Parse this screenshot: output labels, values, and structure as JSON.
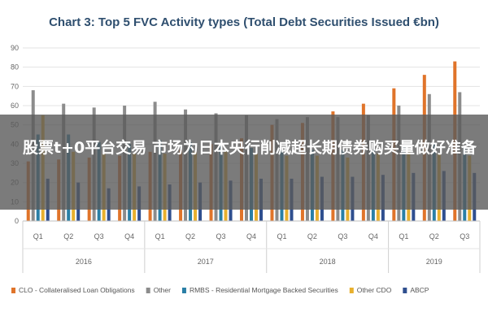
{
  "chart_data": {
    "type": "bar",
    "title": "Chart 3: Top 5 FVC Activity types (Total Debt Securities Issued €bn)",
    "xlabel": "",
    "ylabel": "",
    "ylim": [
      0,
      90
    ],
    "yticks": [
      0,
      10,
      20,
      30,
      40,
      50,
      60,
      70,
      80,
      90
    ],
    "grid": true,
    "legend_position": "bottom",
    "categories": [
      "Q1",
      "Q2",
      "Q3",
      "Q4",
      "Q1",
      "Q2",
      "Q3",
      "Q4",
      "Q1",
      "Q2",
      "Q3",
      "Q4",
      "Q1",
      "Q2",
      "Q3"
    ],
    "groups": [
      {
        "label": "2016",
        "count": 4
      },
      {
        "label": "2017",
        "count": 4
      },
      {
        "label": "2018",
        "count": 4
      },
      {
        "label": "2019",
        "count": 3
      }
    ],
    "series": [
      {
        "name": "CLO - Collateralised Loan Obligations",
        "color": "#e0742a",
        "values": [
          31,
          32,
          33,
          34,
          36,
          37,
          40,
          43,
          50,
          51,
          57,
          61,
          69,
          76,
          83
        ]
      },
      {
        "name": "Other",
        "color": "#8c8c8c",
        "values": [
          68,
          61,
          59,
          60,
          62,
          58,
          56,
          55,
          53,
          54,
          54,
          55,
          60,
          66,
          67
        ]
      },
      {
        "name": "RMBS - Residential Mortgage Backed Securities",
        "color": "#2a7fa6",
        "values": [
          45,
          45,
          41,
          40,
          42,
          41,
          40,
          38,
          37,
          37,
          37,
          37,
          39,
          40,
          38
        ]
      },
      {
        "name": "Other CDO",
        "color": "#e8b02e",
        "values": [
          55,
          36,
          35,
          35,
          35,
          36,
          36,
          35,
          34,
          34,
          33,
          35,
          37,
          35,
          34
        ]
      },
      {
        "name": "ABCP",
        "color": "#2f4f8f",
        "values": [
          22,
          20,
          17,
          18,
          19,
          20,
          21,
          22,
          22,
          23,
          23,
          24,
          25,
          26,
          25
        ]
      }
    ]
  },
  "overlay": {
    "headline": "股票t+0平台交易 市场为日本央行削减超长期债券购买量做好准备"
  }
}
